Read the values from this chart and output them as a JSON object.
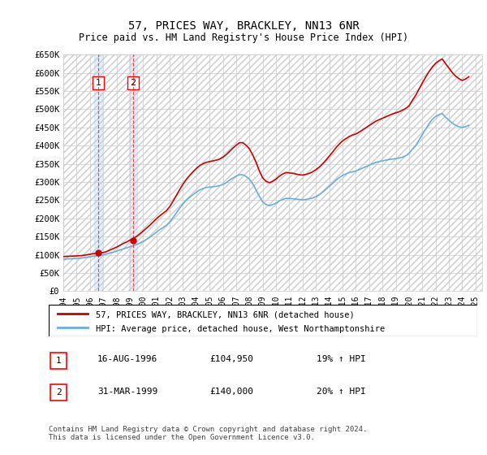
{
  "title": "57, PRICES WAY, BRACKLEY, NN13 6NR",
  "subtitle": "Price paid vs. HM Land Registry's House Price Index (HPI)",
  "legend_line1": "57, PRICES WAY, BRACKLEY, NN13 6NR (detached house)",
  "legend_line2": "HPI: Average price, detached house, West Northamptonshire",
  "footnote": "Contains HM Land Registry data © Crown copyright and database right 2024.\nThis data is licensed under the Open Government Licence v3.0.",
  "transaction1_label": "1",
  "transaction1_date": "16-AUG-1996",
  "transaction1_price": "£104,950",
  "transaction1_hpi": "19% ↑ HPI",
  "transaction2_label": "2",
  "transaction2_date": "31-MAR-1999",
  "transaction2_price": "£140,000",
  "transaction2_hpi": "20% ↑ HPI",
  "xmin": 1994.0,
  "xmax": 2025.5,
  "ymin": 0,
  "ymax": 650000,
  "yticks": [
    0,
    50000,
    100000,
    150000,
    200000,
    250000,
    300000,
    350000,
    400000,
    450000,
    500000,
    550000,
    600000,
    650000
  ],
  "ytick_labels": [
    "£0",
    "£50K",
    "£100K",
    "£150K",
    "£200K",
    "£250K",
    "£300K",
    "£350K",
    "£400K",
    "£450K",
    "£500K",
    "£550K",
    "£600K",
    "£650K"
  ],
  "xticks": [
    1994,
    1995,
    1996,
    1997,
    1998,
    1999,
    2000,
    2001,
    2002,
    2003,
    2004,
    2005,
    2006,
    2007,
    2008,
    2009,
    2010,
    2011,
    2012,
    2013,
    2014,
    2015,
    2016,
    2017,
    2018,
    2019,
    2020,
    2021,
    2022,
    2023,
    2024,
    2025
  ],
  "hpi_color": "#6baed6",
  "price_color": "#cc0000",
  "transaction1_x": 1996.62,
  "transaction2_x": 1999.25,
  "hatch_color": "#cccccc",
  "grid_color": "#cccccc",
  "box_bg": "#dce9f5",
  "hpi_start_year": 1994,
  "hpi_data_x": [
    1994.0,
    1994.25,
    1994.5,
    1994.75,
    1995.0,
    1995.25,
    1995.5,
    1995.75,
    1996.0,
    1996.25,
    1996.5,
    1996.75,
    1997.0,
    1997.25,
    1997.5,
    1997.75,
    1998.0,
    1998.25,
    1998.5,
    1998.75,
    1999.0,
    1999.25,
    1999.5,
    1999.75,
    2000.0,
    2000.25,
    2000.5,
    2000.75,
    2001.0,
    2001.25,
    2001.5,
    2001.75,
    2002.0,
    2002.25,
    2002.5,
    2002.75,
    2003.0,
    2003.25,
    2003.5,
    2003.75,
    2004.0,
    2004.25,
    2004.5,
    2004.75,
    2005.0,
    2005.25,
    2005.5,
    2005.75,
    2006.0,
    2006.25,
    2006.5,
    2006.75,
    2007.0,
    2007.25,
    2007.5,
    2007.75,
    2008.0,
    2008.25,
    2008.5,
    2008.75,
    2009.0,
    2009.25,
    2009.5,
    2009.75,
    2010.0,
    2010.25,
    2010.5,
    2010.75,
    2011.0,
    2011.25,
    2011.5,
    2011.75,
    2012.0,
    2012.25,
    2012.5,
    2012.75,
    2013.0,
    2013.25,
    2013.5,
    2013.75,
    2014.0,
    2014.25,
    2014.5,
    2014.75,
    2015.0,
    2015.25,
    2015.5,
    2015.75,
    2016.0,
    2016.25,
    2016.5,
    2016.75,
    2017.0,
    2017.25,
    2017.5,
    2017.75,
    2018.0,
    2018.25,
    2018.5,
    2018.75,
    2019.0,
    2019.25,
    2019.5,
    2019.75,
    2020.0,
    2020.25,
    2020.5,
    2020.75,
    2021.0,
    2021.25,
    2021.5,
    2021.75,
    2022.0,
    2022.25,
    2022.5,
    2022.75,
    2023.0,
    2023.25,
    2023.5,
    2023.75,
    2024.0,
    2024.25,
    2024.5
  ],
  "hpi_data_y": [
    88000,
    88500,
    89000,
    89500,
    90000,
    90500,
    91500,
    93000,
    94500,
    96000,
    97500,
    98500,
    99500,
    102000,
    105000,
    107000,
    110000,
    113000,
    116000,
    119000,
    122000,
    125000,
    128000,
    132000,
    137000,
    142000,
    148000,
    155000,
    162000,
    169000,
    175000,
    181000,
    190000,
    202000,
    215000,
    228000,
    240000,
    250000,
    258000,
    265000,
    272000,
    278000,
    282000,
    285000,
    286000,
    287000,
    288000,
    290000,
    293000,
    298000,
    305000,
    311000,
    316000,
    320000,
    320000,
    315000,
    308000,
    295000,
    278000,
    260000,
    245000,
    238000,
    235000,
    238000,
    242000,
    248000,
    252000,
    255000,
    255000,
    254000,
    253000,
    252000,
    251000,
    252000,
    254000,
    256000,
    260000,
    265000,
    272000,
    280000,
    288000,
    296000,
    305000,
    312000,
    318000,
    322000,
    326000,
    328000,
    330000,
    334000,
    338000,
    342000,
    346000,
    350000,
    354000,
    356000,
    358000,
    360000,
    362000,
    363000,
    364000,
    366000,
    368000,
    372000,
    378000,
    390000,
    400000,
    415000,
    430000,
    445000,
    460000,
    472000,
    480000,
    485000,
    488000,
    478000,
    470000,
    462000,
    456000,
    452000,
    450000,
    452000,
    456000
  ],
  "price_data_x": [
    1994.0,
    1994.25,
    1994.5,
    1994.75,
    1995.0,
    1995.25,
    1995.5,
    1995.75,
    1996.0,
    1996.25,
    1996.5,
    1996.75,
    1997.0,
    1997.25,
    1997.5,
    1997.75,
    1998.0,
    1998.25,
    1998.5,
    1998.75,
    1999.0,
    1999.25,
    1999.5,
    1999.75,
    2000.0,
    2000.25,
    2000.5,
    2000.75,
    2001.0,
    2001.25,
    2001.5,
    2001.75,
    2002.0,
    2002.25,
    2002.5,
    2002.75,
    2003.0,
    2003.25,
    2003.5,
    2003.75,
    2004.0,
    2004.25,
    2004.5,
    2004.75,
    2005.0,
    2005.25,
    2005.5,
    2005.75,
    2006.0,
    2006.25,
    2006.5,
    2006.75,
    2007.0,
    2007.25,
    2007.5,
    2007.75,
    2008.0,
    2008.25,
    2008.5,
    2008.75,
    2009.0,
    2009.25,
    2009.5,
    2009.75,
    2010.0,
    2010.25,
    2010.5,
    2010.75,
    2011.0,
    2011.25,
    2011.5,
    2011.75,
    2012.0,
    2012.25,
    2012.5,
    2012.75,
    2013.0,
    2013.25,
    2013.5,
    2013.75,
    2014.0,
    2014.25,
    2014.5,
    2014.75,
    2015.0,
    2015.25,
    2015.5,
    2015.75,
    2016.0,
    2016.25,
    2016.5,
    2016.75,
    2017.0,
    2017.25,
    2017.5,
    2017.75,
    2018.0,
    2018.25,
    2018.5,
    2018.75,
    2019.0,
    2019.25,
    2019.5,
    2019.75,
    2020.0,
    2020.25,
    2020.5,
    2020.75,
    2021.0,
    2021.25,
    2021.5,
    2021.75,
    2022.0,
    2022.25,
    2022.5,
    2022.75,
    2023.0,
    2023.25,
    2023.5,
    2023.75,
    2024.0,
    2024.25,
    2024.5
  ],
  "price_data_y": [
    95000,
    95500,
    96000,
    96500,
    97000,
    97500,
    98500,
    100000,
    101500,
    103000,
    104500,
    105000,
    106000,
    109000,
    113000,
    117000,
    121000,
    126000,
    131000,
    135000,
    140000,
    145000,
    150000,
    157000,
    165000,
    173000,
    181000,
    190000,
    199000,
    207000,
    214000,
    221000,
    232000,
    247000,
    263000,
    279000,
    294000,
    307000,
    318000,
    328000,
    337000,
    345000,
    350000,
    354000,
    356000,
    358000,
    360000,
    363000,
    368000,
    375000,
    384000,
    393000,
    401000,
    408000,
    408000,
    401000,
    391000,
    374000,
    354000,
    330000,
    311000,
    302000,
    298000,
    302000,
    308000,
    316000,
    322000,
    326000,
    325000,
    324000,
    322000,
    320000,
    319000,
    321000,
    324000,
    328000,
    334000,
    341000,
    350000,
    360000,
    371000,
    382000,
    394000,
    404000,
    413000,
    419000,
    425000,
    429000,
    432000,
    437000,
    443000,
    449000,
    455000,
    461000,
    467000,
    471000,
    475000,
    479000,
    483000,
    487000,
    490000,
    493000,
    497000,
    502000,
    509000,
    524000,
    538000,
    555000,
    572000,
    588000,
    603000,
    616000,
    626000,
    633000,
    638000,
    625000,
    613000,
    601000,
    591000,
    584000,
    579000,
    583000,
    589000
  ]
}
